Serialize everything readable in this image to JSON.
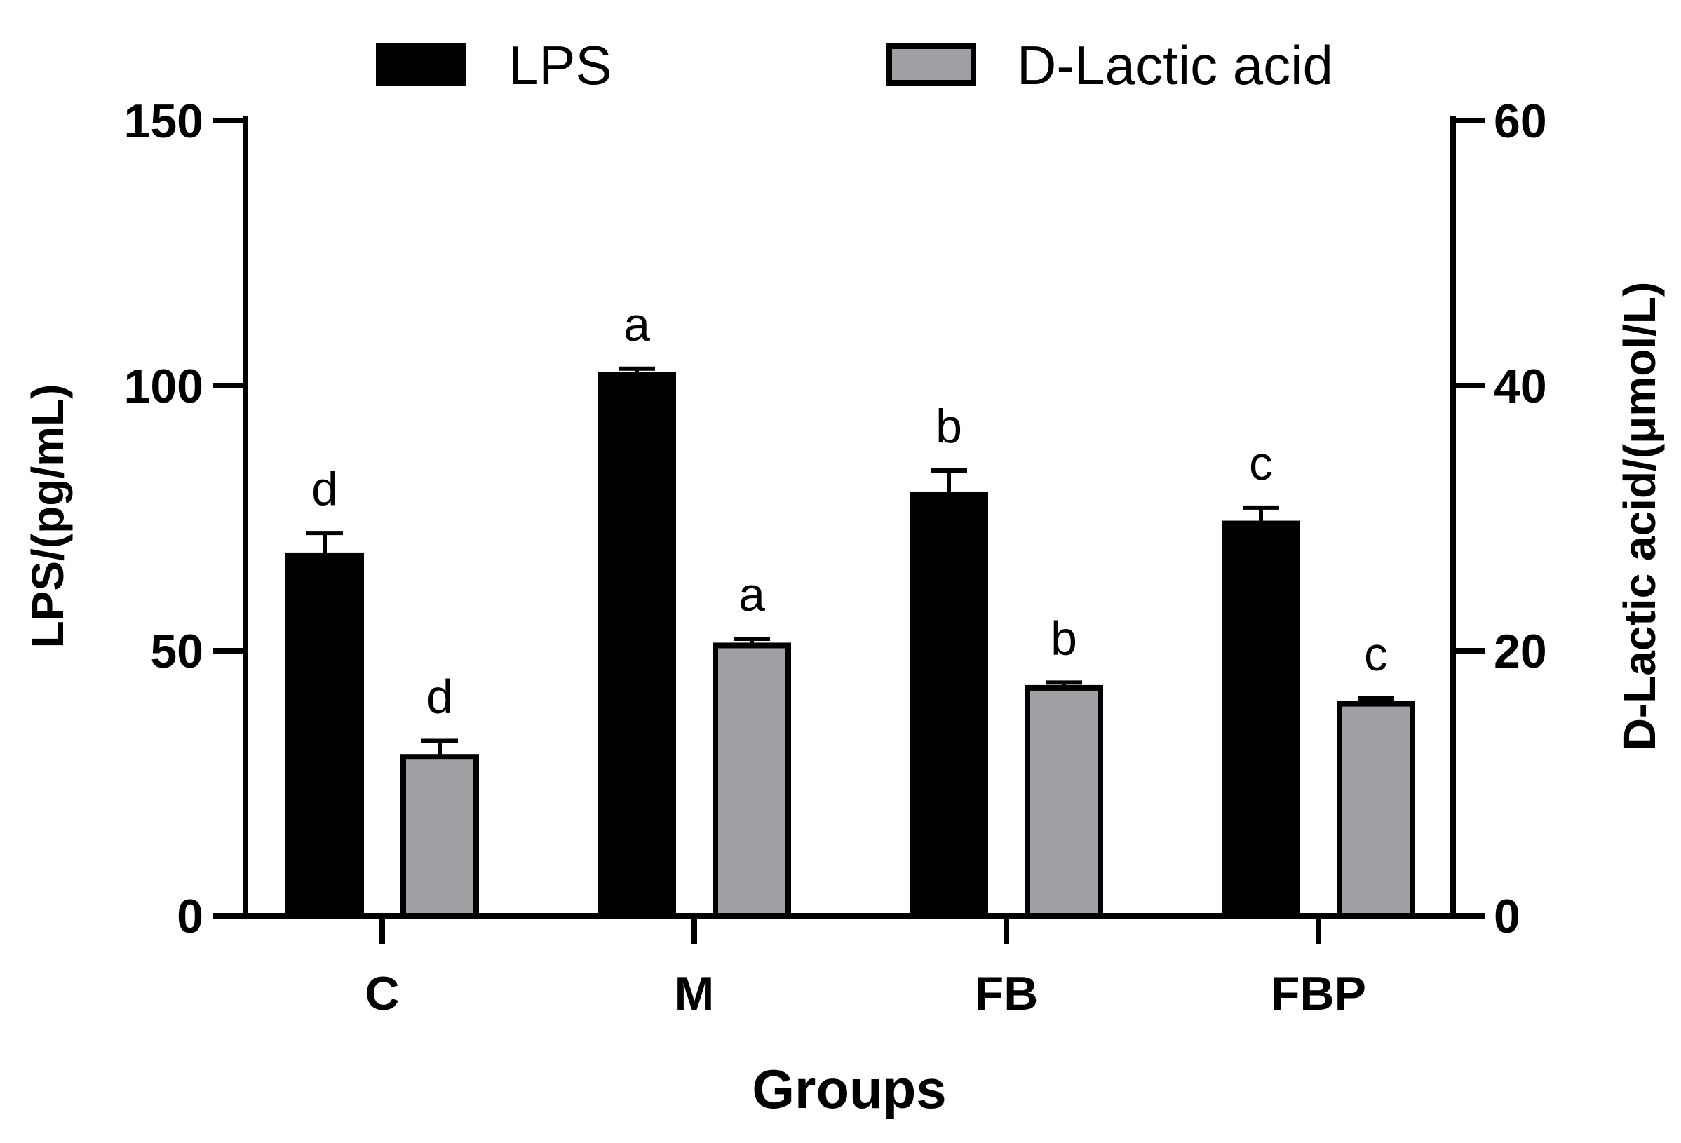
{
  "chart_data": {
    "type": "bar",
    "categories": [
      "C",
      "M",
      "FB",
      "FBP"
    ],
    "xlabel": "Groups",
    "ylabel_left": "LPS/(pg/mL)",
    "ylabel_right": "D-Lactic acid/(μmol/L)",
    "ylim_left": [
      0,
      150
    ],
    "ylim_right": [
      0,
      60
    ],
    "yticks_left": [
      0,
      50,
      100,
      150
    ],
    "yticks_right": [
      0,
      20,
      40,
      60
    ],
    "legend_position": "top",
    "grid": false,
    "series": [
      {
        "name": "LPS",
        "axis": "left",
        "color": "#000000",
        "values": [
          68,
          102,
          79.5,
          74
        ],
        "errors": [
          4.2,
          1.2,
          4.5,
          3
        ],
        "significance": [
          "d",
          "a",
          "b",
          "c"
        ]
      },
      {
        "name": "D-Lactic acid",
        "axis": "right",
        "color": "#a0a0a4",
        "values": [
          12,
          20.4,
          17.2,
          16
        ],
        "errors": [
          1.2,
          0.5,
          0.4,
          0.4
        ],
        "significance": [
          "d",
          "a",
          "b",
          "c"
        ]
      }
    ]
  }
}
